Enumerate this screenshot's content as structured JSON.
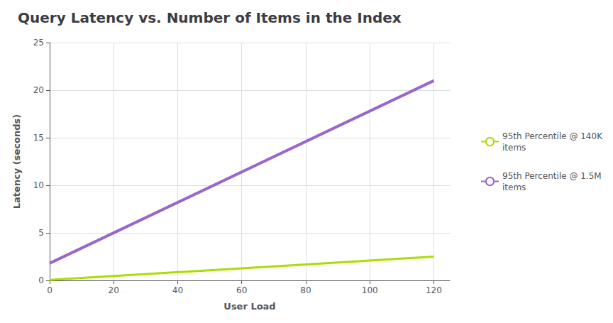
{
  "chart_data": {
    "type": "line",
    "title": "Query Latency vs. Number of Items in the Index",
    "x_label": "User Load",
    "y_label": "Latency (seconds)",
    "x": [
      0,
      120
    ],
    "series": [
      {
        "name": "95th Percentile @ 140K\nitems",
        "color": "#aadd00",
        "values": [
          0.05,
          2.5
        ]
      },
      {
        "name": "95th Percentile @ 1.5M\nitems",
        "color": "#9966cc",
        "values": [
          1.8,
          21.0
        ]
      }
    ],
    "xlim": [
      0,
      125
    ],
    "ylim": [
      0,
      25
    ],
    "xticks": [
      0,
      20,
      40,
      60,
      80,
      100,
      120
    ],
    "yticks": [
      0,
      5,
      10,
      15,
      20,
      25
    ],
    "grid": true,
    "legend": "right"
  }
}
